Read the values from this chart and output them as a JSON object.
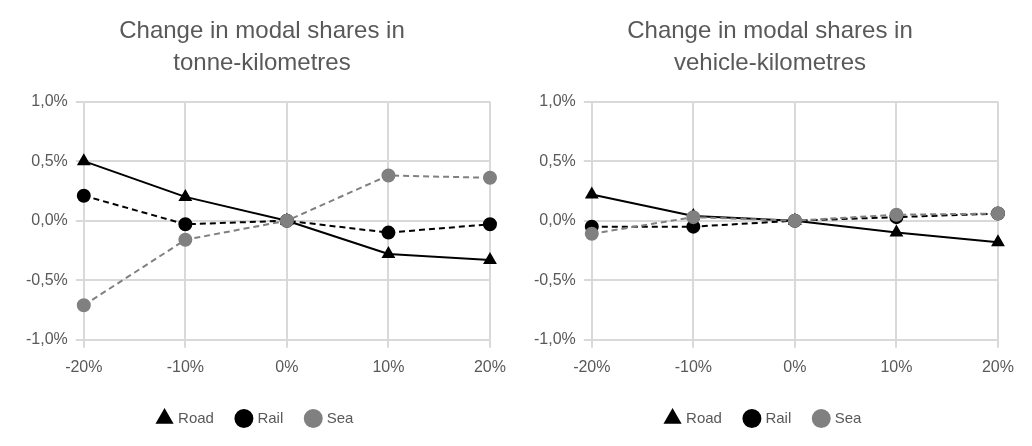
{
  "chart_data": [
    {
      "type": "line",
      "title": "Change in modal shares in tonne-kilometres",
      "categories": [
        "-20%",
        "-10%",
        "0%",
        "10%",
        "20%"
      ],
      "ylim": [
        -1,
        1
      ],
      "yticks": [
        {
          "value": -1,
          "label": "-1,0%"
        },
        {
          "value": -0.5,
          "label": "-0,5%"
        },
        {
          "value": 0,
          "label": "0,0%"
        },
        {
          "value": 0.5,
          "label": "0,5%"
        },
        {
          "value": 1,
          "label": "1,0%"
        }
      ],
      "grid": true,
      "legend": "bottom",
      "series": [
        {
          "name": "Road",
          "color": "#000000",
          "marker": "triangle",
          "line_style": "solid",
          "values": [
            0.5,
            0.2,
            0,
            -0.28,
            -0.33
          ]
        },
        {
          "name": "Rail",
          "color": "#000000",
          "marker": "circle",
          "line_style": "dashed",
          "values": [
            0.21,
            -0.03,
            0,
            -0.1,
            -0.03
          ]
        },
        {
          "name": "Sea",
          "color": "#808080",
          "marker": "circle",
          "line_style": "dashed",
          "values": [
            -0.71,
            -0.16,
            0,
            0.38,
            0.36
          ]
        }
      ]
    },
    {
      "type": "line",
      "title": "Change in modal shares in vehicle-kilometres",
      "categories": [
        "-20%",
        "-10%",
        "0%",
        "10%",
        "20%"
      ],
      "ylim": [
        -1,
        1
      ],
      "yticks": [
        {
          "value": -1,
          "label": "-1,0%"
        },
        {
          "value": -0.5,
          "label": "-0,5%"
        },
        {
          "value": 0,
          "label": "0,0%"
        },
        {
          "value": 0.5,
          "label": "0,5%"
        },
        {
          "value": 1,
          "label": "1,0%"
        }
      ],
      "grid": true,
      "legend": "bottom",
      "series": [
        {
          "name": "Road",
          "color": "#000000",
          "marker": "triangle",
          "line_style": "solid",
          "values": [
            0.22,
            0.04,
            0,
            -0.1,
            -0.18
          ]
        },
        {
          "name": "Rail",
          "color": "#000000",
          "marker": "circle",
          "line_style": "dashed",
          "values": [
            -0.05,
            -0.05,
            0,
            0.03,
            0.06
          ]
        },
        {
          "name": "Sea",
          "color": "#808080",
          "marker": "circle",
          "line_style": "dashed",
          "values": [
            -0.11,
            0.03,
            0,
            0.05,
            0.06
          ]
        }
      ]
    }
  ]
}
